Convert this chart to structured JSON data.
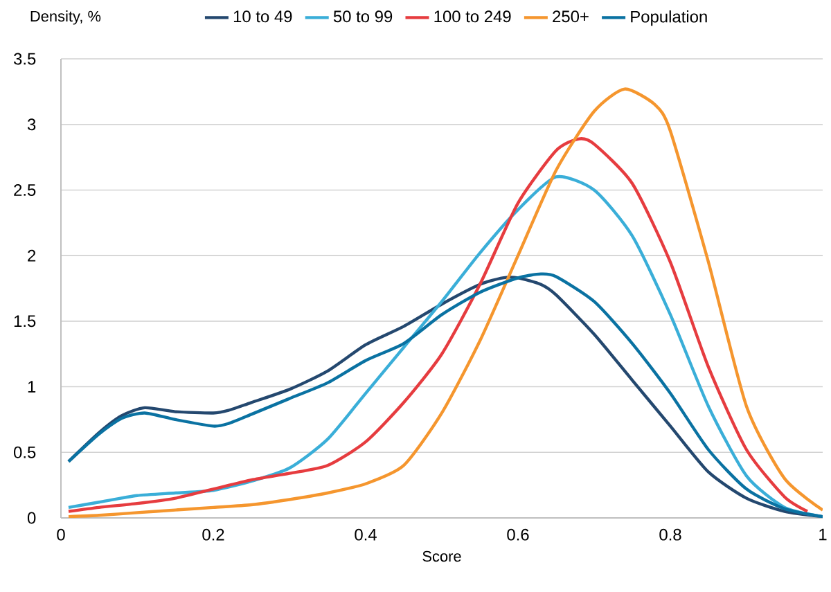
{
  "chart_data": {
    "type": "line",
    "xlabel": "Score",
    "ylabel": "Density, %",
    "xlim": [
      0,
      1
    ],
    "xticks": [
      0,
      0.2,
      0.4,
      0.6,
      0.8,
      1
    ],
    "ylim": [
      0,
      3.5
    ],
    "yticks": [
      0,
      0.5,
      1,
      1.5,
      2,
      2.5,
      3,
      3.5
    ],
    "grid": "y",
    "legend": "top",
    "marker": "none",
    "line_style": "solid",
    "series": [
      {
        "name": "10 to 49",
        "color": "#24486f",
        "x": [
          0.01,
          0.05,
          0.08,
          0.11,
          0.15,
          0.2,
          0.22,
          0.25,
          0.3,
          0.35,
          0.4,
          0.45,
          0.5,
          0.55,
          0.58,
          0.6,
          0.63,
          0.65,
          0.7,
          0.75,
          0.8,
          0.85,
          0.9,
          0.95,
          1.0
        ],
        "values": [
          0.43,
          0.65,
          0.78,
          0.84,
          0.81,
          0.8,
          0.82,
          0.88,
          0.98,
          1.12,
          1.32,
          1.46,
          1.63,
          1.78,
          1.83,
          1.83,
          1.78,
          1.7,
          1.4,
          1.05,
          0.7,
          0.35,
          0.15,
          0.05,
          0.01
        ]
      },
      {
        "name": "50 to 99",
        "color": "#3aaed8",
        "x": [
          0.01,
          0.05,
          0.1,
          0.15,
          0.2,
          0.25,
          0.3,
          0.35,
          0.4,
          0.45,
          0.5,
          0.55,
          0.6,
          0.65,
          0.7,
          0.75,
          0.8,
          0.85,
          0.9,
          0.95,
          1.0
        ],
        "values": [
          0.08,
          0.12,
          0.17,
          0.19,
          0.21,
          0.28,
          0.38,
          0.6,
          0.95,
          1.3,
          1.65,
          2.02,
          2.35,
          2.6,
          2.5,
          2.15,
          1.55,
          0.85,
          0.32,
          0.08,
          0.01
        ]
      },
      {
        "name": "100 to 249",
        "color": "#e63c3f",
        "x": [
          0.01,
          0.05,
          0.1,
          0.15,
          0.2,
          0.25,
          0.3,
          0.35,
          0.4,
          0.45,
          0.5,
          0.55,
          0.6,
          0.65,
          0.68,
          0.7,
          0.75,
          0.8,
          0.85,
          0.9,
          0.95,
          0.98
        ],
        "values": [
          0.05,
          0.08,
          0.11,
          0.15,
          0.22,
          0.29,
          0.34,
          0.4,
          0.58,
          0.88,
          1.25,
          1.78,
          2.4,
          2.8,
          2.89,
          2.85,
          2.55,
          1.95,
          1.15,
          0.52,
          0.16,
          0.05
        ]
      },
      {
        "name": "250+",
        "color": "#f5962e",
        "x": [
          0.01,
          0.05,
          0.1,
          0.15,
          0.2,
          0.25,
          0.3,
          0.35,
          0.4,
          0.45,
          0.5,
          0.55,
          0.6,
          0.65,
          0.7,
          0.74,
          0.78,
          0.8,
          0.85,
          0.9,
          0.95,
          1.0
        ],
        "values": [
          0.01,
          0.02,
          0.04,
          0.06,
          0.08,
          0.1,
          0.14,
          0.19,
          0.26,
          0.4,
          0.8,
          1.35,
          2.0,
          2.65,
          3.1,
          3.27,
          3.15,
          2.95,
          1.95,
          0.85,
          0.3,
          0.06
        ]
      },
      {
        "name": "Population",
        "color": "#0a72a2",
        "x": [
          0.01,
          0.05,
          0.08,
          0.11,
          0.15,
          0.2,
          0.22,
          0.25,
          0.3,
          0.35,
          0.4,
          0.45,
          0.5,
          0.55,
          0.6,
          0.63,
          0.65,
          0.7,
          0.75,
          0.8,
          0.85,
          0.9,
          0.95,
          1.0
        ],
        "values": [
          0.43,
          0.64,
          0.76,
          0.8,
          0.75,
          0.7,
          0.72,
          0.79,
          0.91,
          1.03,
          1.2,
          1.33,
          1.55,
          1.72,
          1.83,
          1.86,
          1.84,
          1.65,
          1.33,
          0.95,
          0.52,
          0.22,
          0.07,
          0.01
        ]
      }
    ]
  }
}
